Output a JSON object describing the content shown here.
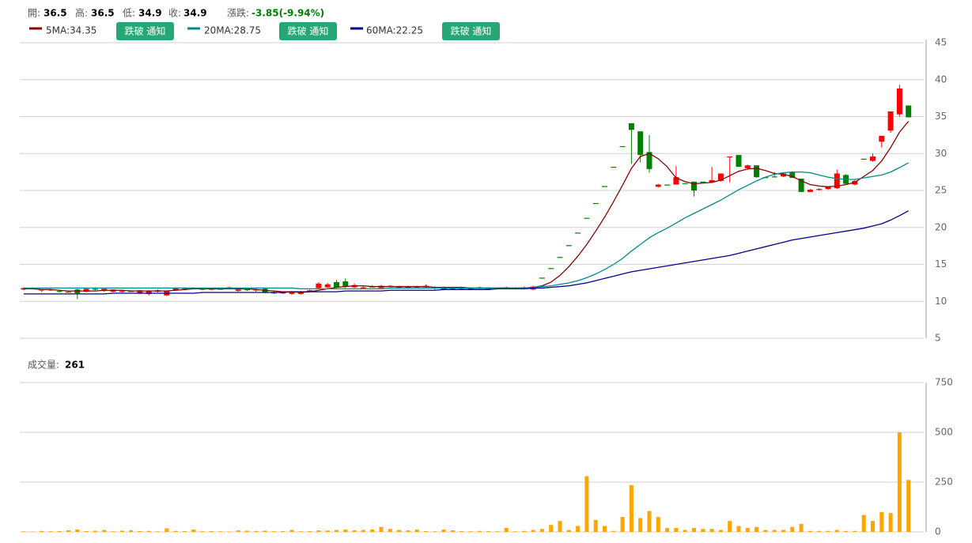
{
  "header": {
    "items": [
      {
        "label": "開:",
        "value": 36.5
      },
      {
        "label": "高:",
        "value": 36.5
      },
      {
        "label": "低:",
        "value": 34.9
      },
      {
        "label": "收:",
        "value": 34.9
      }
    ],
    "change_label": "漲跌:",
    "change": "-3.85(-9.94%)",
    "change_color": "#008000"
  },
  "chart_data": [
    {
      "type": "candlestick",
      "up_color": "#ff0000",
      "down_color": "#008000",
      "open": [
        11.6,
        11.8,
        11.5,
        11.6,
        11.4,
        11.3,
        11.6,
        11.3,
        11.7,
        11.4,
        11.3,
        11.3,
        11.4,
        11.1,
        11.0,
        11.5,
        10.8,
        11.5,
        11.7,
        11.8,
        11.7,
        11.6,
        11.7,
        11.8,
        11.4,
        11.7,
        11.5,
        11.7,
        11.2,
        11.1,
        11.0,
        11.0,
        11.4,
        11.8,
        11.9,
        12.6,
        12.7,
        11.9,
        11.8,
        12.0,
        11.8,
        12.1,
        11.8,
        11.8,
        12.0,
        11.9,
        11.9,
        11.6,
        11.7,
        11.7,
        11.6,
        11.9,
        11.8,
        11.7,
        11.9,
        11.7,
        11.7,
        11.6,
        13.2,
        14.5,
        16.0,
        17.6,
        19.3,
        21.3,
        23.3,
        25.6,
        28.2,
        31.0,
        34.1,
        33.0,
        30.2,
        25.5,
        25.8,
        25.8,
        26.0,
        26.2,
        26.2,
        26.1,
        26.3,
        29.5,
        29.8,
        28.0,
        28.4,
        26.8,
        26.9,
        26.9,
        27.5,
        26.6,
        24.8,
        25.1,
        25.2,
        25.3,
        27.1,
        25.8,
        29.3,
        29.0,
        31.6,
        33.1,
        35.3,
        36.5
      ],
      "high": [
        11.9,
        11.9,
        11.7,
        11.7,
        11.5,
        11.4,
        11.7,
        11.8,
        11.9,
        11.7,
        11.6,
        11.5,
        11.5,
        11.5,
        11.5,
        11.6,
        11.4,
        11.9,
        11.9,
        11.9,
        11.8,
        11.8,
        11.8,
        12.0,
        11.7,
        11.8,
        11.7,
        11.8,
        11.4,
        11.3,
        11.4,
        11.4,
        11.6,
        12.6,
        12.5,
        12.9,
        13.1,
        12.4,
        12.1,
        12.2,
        12.2,
        12.2,
        12.1,
        12.1,
        12.1,
        12.3,
        12.0,
        12.0,
        11.9,
        12.0,
        11.9,
        12.0,
        11.9,
        11.9,
        12.0,
        11.9,
        12.0,
        12.1,
        13.2,
        14.5,
        16.0,
        17.6,
        19.3,
        21.3,
        23.3,
        25.6,
        28.2,
        31.0,
        34.1,
        33.0,
        32.5,
        25.9,
        25.8,
        28.3,
        26.0,
        26.2,
        26.2,
        28.2,
        27.3,
        29.6,
        29.8,
        28.5,
        28.4,
        26.8,
        27.5,
        27.4,
        27.6,
        26.6,
        25.2,
        25.3,
        25.5,
        27.8,
        27.2,
        26.4,
        29.3,
        30.0,
        32.4,
        35.7,
        39.3,
        36.5
      ],
      "low": [
        11.5,
        11.6,
        11.3,
        11.4,
        11.2,
        11.2,
        10.3,
        11.2,
        11.5,
        11.3,
        11.2,
        11.2,
        11.3,
        11.0,
        10.8,
        11.2,
        10.7,
        11.4,
        11.6,
        11.6,
        11.5,
        11.5,
        11.6,
        11.7,
        11.3,
        11.4,
        11.3,
        11.1,
        11.0,
        11.0,
        10.9,
        10.9,
        11.3,
        11.7,
        11.8,
        11.8,
        11.8,
        11.8,
        11.7,
        11.9,
        11.7,
        11.9,
        11.7,
        11.7,
        11.8,
        11.8,
        11.6,
        11.5,
        11.6,
        11.6,
        11.5,
        11.7,
        11.6,
        11.6,
        11.7,
        11.6,
        11.6,
        11.5,
        13.2,
        14.5,
        16.0,
        17.6,
        19.3,
        21.3,
        23.3,
        25.6,
        28.2,
        31.0,
        28.6,
        28.8,
        27.4,
        25.4,
        25.8,
        25.8,
        26.0,
        24.2,
        26.2,
        26.0,
        26.2,
        26.1,
        28.2,
        27.9,
        26.7,
        26.8,
        26.9,
        26.8,
        26.7,
        24.8,
        24.8,
        25.0,
        25.1,
        25.2,
        25.9,
        25.7,
        29.3,
        28.9,
        30.8,
        32.8,
        35.0,
        34.9
      ],
      "close": [
        11.8,
        11.7,
        11.6,
        11.5,
        11.3,
        11.3,
        11.1,
        11.7,
        11.6,
        11.7,
        11.6,
        11.4,
        11.4,
        11.5,
        11.4,
        11.3,
        11.4,
        11.8,
        11.8,
        11.7,
        11.7,
        11.7,
        11.7,
        11.9,
        11.6,
        11.5,
        11.6,
        11.2,
        11.1,
        11.2,
        11.3,
        11.3,
        11.5,
        12.4,
        12.3,
        11.9,
        12.0,
        12.2,
        11.9,
        12.0,
        12.1,
        12.0,
        12.0,
        12.0,
        11.9,
        12.1,
        11.8,
        11.9,
        11.8,
        11.9,
        11.8,
        11.8,
        11.7,
        11.8,
        11.8,
        11.8,
        11.9,
        12.0,
        13.2,
        14.5,
        16.0,
        17.6,
        19.3,
        21.3,
        23.3,
        25.6,
        28.2,
        31.0,
        33.2,
        29.8,
        27.9,
        25.8,
        25.8,
        26.8,
        26.0,
        25.0,
        26.2,
        26.4,
        27.3,
        29.6,
        28.2,
        28.4,
        26.8,
        26.8,
        26.9,
        27.3,
        26.7,
        24.8,
        25.1,
        25.2,
        25.5,
        27.3,
        25.9,
        26.3,
        29.3,
        29.6,
        32.4,
        35.7,
        38.8,
        34.9
      ],
      "series": [
        {
          "name": "5MA:34.35",
          "color": "#8b0000",
          "button": "跌破 通知",
          "values": [
            11.7,
            11.7,
            11.6,
            11.6,
            11.5,
            11.4,
            11.4,
            11.4,
            11.4,
            11.5,
            11.5,
            11.5,
            11.4,
            11.4,
            11.4,
            11.4,
            11.4,
            11.5,
            11.6,
            11.7,
            11.7,
            11.7,
            11.7,
            11.7,
            11.7,
            11.7,
            11.6,
            11.5,
            11.4,
            11.3,
            11.3,
            11.2,
            11.3,
            11.5,
            11.7,
            11.9,
            12.0,
            12.1,
            12.1,
            12.0,
            12.0,
            12.0,
            12.0,
            12.0,
            12.0,
            12.0,
            11.9,
            11.9,
            11.9,
            11.9,
            11.8,
            11.8,
            11.8,
            11.8,
            11.8,
            11.8,
            11.8,
            11.9,
            12.1,
            12.6,
            13.5,
            14.7,
            16.1,
            17.7,
            19.5,
            21.4,
            23.5,
            25.7,
            28.0,
            29.6,
            30.0,
            29.3,
            28.2,
            26.7,
            26.2,
            25.9,
            26.0,
            26.1,
            26.4,
            27.0,
            27.6,
            27.9,
            28.0,
            27.7,
            27.3,
            27.2,
            26.9,
            26.3,
            25.8,
            25.6,
            25.5,
            25.6,
            25.8,
            26.1,
            26.9,
            27.7,
            29.0,
            30.8,
            32.9,
            34.35
          ]
        },
        {
          "name": "20MA:28.75",
          "color": "#008b8b",
          "button": "跌破 通知",
          "values": [
            11.8,
            11.8,
            11.8,
            11.8,
            11.8,
            11.8,
            11.8,
            11.8,
            11.8,
            11.8,
            11.8,
            11.8,
            11.8,
            11.8,
            11.8,
            11.8,
            11.8,
            11.8,
            11.8,
            11.8,
            11.8,
            11.8,
            11.8,
            11.8,
            11.8,
            11.8,
            11.8,
            11.8,
            11.8,
            11.8,
            11.8,
            11.7,
            11.7,
            11.7,
            11.7,
            11.7,
            11.7,
            11.7,
            11.7,
            11.7,
            11.7,
            11.8,
            11.8,
            11.8,
            11.8,
            11.8,
            11.8,
            11.8,
            11.8,
            11.8,
            11.8,
            11.8,
            11.8,
            11.8,
            11.8,
            11.8,
            11.8,
            11.9,
            12.0,
            12.1,
            12.3,
            12.5,
            12.8,
            13.2,
            13.7,
            14.3,
            15.0,
            15.8,
            16.8,
            17.7,
            18.6,
            19.3,
            19.9,
            20.6,
            21.3,
            21.9,
            22.5,
            23.1,
            23.7,
            24.4,
            25.1,
            25.7,
            26.3,
            26.8,
            27.2,
            27.4,
            27.5,
            27.5,
            27.4,
            27.1,
            26.8,
            26.6,
            26.5,
            26.5,
            26.7,
            26.9,
            27.1,
            27.5,
            28.1,
            28.75
          ]
        },
        {
          "name": "60MA:22.25",
          "color": "#00008b",
          "button": "跌破 通知",
          "values": [
            11.0,
            11.0,
            11.0,
            11.0,
            11.0,
            11.0,
            11.0,
            11.0,
            11.0,
            11.0,
            11.1,
            11.1,
            11.1,
            11.1,
            11.1,
            11.1,
            11.1,
            11.1,
            11.1,
            11.1,
            11.2,
            11.2,
            11.2,
            11.2,
            11.2,
            11.2,
            11.2,
            11.2,
            11.2,
            11.2,
            11.3,
            11.3,
            11.3,
            11.3,
            11.3,
            11.3,
            11.4,
            11.4,
            11.4,
            11.4,
            11.4,
            11.5,
            11.5,
            11.5,
            11.5,
            11.5,
            11.5,
            11.6,
            11.6,
            11.6,
            11.6,
            11.6,
            11.6,
            11.7,
            11.7,
            11.7,
            11.7,
            11.8,
            11.8,
            11.9,
            12.0,
            12.1,
            12.3,
            12.5,
            12.8,
            13.1,
            13.4,
            13.7,
            14.0,
            14.2,
            14.4,
            14.6,
            14.8,
            15.0,
            15.2,
            15.4,
            15.6,
            15.8,
            16.0,
            16.2,
            16.5,
            16.8,
            17.1,
            17.4,
            17.7,
            18.0,
            18.3,
            18.5,
            18.7,
            18.9,
            19.1,
            19.3,
            19.5,
            19.7,
            19.9,
            20.2,
            20.5,
            21.0,
            21.6,
            22.25
          ]
        }
      ],
      "ylim": [
        5,
        45
      ],
      "yticks": [
        5,
        10,
        15,
        20,
        25,
        30,
        35,
        40,
        45
      ],
      "grid": true
    },
    {
      "type": "bar",
      "title": "成交量:",
      "color": "#ffa500",
      "values": [
        3,
        2,
        5,
        3,
        4,
        8,
        12,
        4,
        6,
        10,
        3,
        6,
        8,
        4,
        5,
        3,
        18,
        5,
        4,
        12,
        3,
        4,
        3,
        2,
        8,
        6,
        5,
        6,
        3,
        4,
        10,
        3,
        4,
        8,
        7,
        10,
        12,
        8,
        10,
        12,
        25,
        15,
        10,
        8,
        12,
        4,
        3,
        12,
        8,
        4,
        3,
        5,
        4,
        3,
        20,
        3,
        5,
        10,
        15,
        35,
        55,
        10,
        30,
        280,
        60,
        30,
        5,
        75,
        235,
        70,
        105,
        75,
        20,
        20,
        10,
        20,
        15,
        15,
        10,
        55,
        30,
        20,
        25,
        10,
        10,
        10,
        25,
        40,
        5,
        5,
        5,
        10,
        5,
        5,
        85,
        55,
        100,
        95,
        500,
        261
      ],
      "ylim": [
        0,
        750
      ],
      "yticks": [
        0,
        250,
        500,
        750
      ],
      "grid": true
    }
  ]
}
